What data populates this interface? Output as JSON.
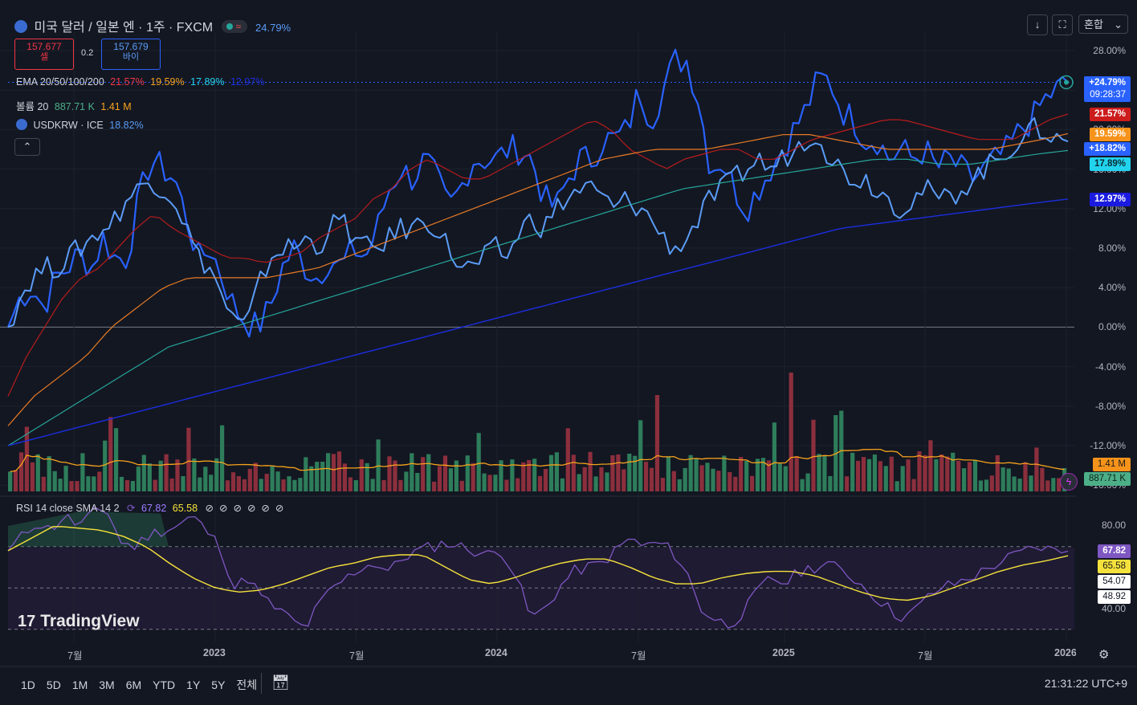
{
  "header": {
    "symbol_title": "미국 달러 / 일본 엔 · 1주 · FXCM",
    "change_pct": "24.79%",
    "sell_price": "157.677",
    "sell_label": "셀",
    "spread": "0.2",
    "buy_price": "157.679",
    "buy_label": "바이",
    "mode_select": "혼합"
  },
  "legends": {
    "ema_label": "EMA 20/50/100/200",
    "ema_values": [
      "21.57%",
      "19.59%",
      "17.89%",
      "12.97%"
    ],
    "volume_label": "볼륨 20",
    "volume_values": [
      "887.71 K",
      "1.41 M"
    ],
    "compare_label": "USDKRW · ICE",
    "compare_value": "18.82%",
    "rsi_label": "RSI 14 close SMA 14 2",
    "rsi_values": [
      "67.82",
      "65.58"
    ]
  },
  "colors": {
    "main": "#2962ff",
    "compare": "#5b9cf6",
    "ema20": "#b71c1c",
    "ema50": "#e97b25",
    "ema100": "#26a69a",
    "ema200": "#1b2ee0",
    "vol_up": "#2e7d5b",
    "vol_down": "#8c2f3d",
    "rsi": "#7e57c2",
    "rsi_ma": "#f5e13b"
  },
  "price_axis": [
    "28.00%",
    "24.00%",
    "20.00%",
    "16.00%",
    "12.00%",
    "8.00%",
    "4.00%",
    "0.00%",
    "-4.00%",
    "-8.00%",
    "-12.00%",
    "-16.00%"
  ],
  "price_tags": {
    "last": "+24.79%",
    "countdown": "09:28:37",
    "ema20": "21.57%",
    "ema50": "19.59%",
    "compare": "+18.82%",
    "ema100": "17.89%",
    "ema200": "12.97%",
    "vol_ma": "1.41 M",
    "vol": "887.71 K"
  },
  "rsi_axis": [
    "80.00",
    "40.00"
  ],
  "rsi_tags": [
    "67.82",
    "65.58",
    "54.07",
    "48.92"
  ],
  "x_axis": [
    "7월",
    "2023",
    "7월",
    "2024",
    "7월",
    "2025",
    "7월",
    "2026"
  ],
  "timeframes": [
    "1D",
    "5D",
    "1M",
    "3M",
    "6M",
    "YTD",
    "1Y",
    "5Y",
    "전체"
  ],
  "clock": "21:31:22 UTC+9",
  "watermark": "TradingView",
  "chart_data": {
    "type": "line",
    "title": "미국 달러 / 일본 엔 · 1주 · FXCM",
    "y_unit": "%",
    "ylim": [
      -16,
      28
    ],
    "x_range": [
      "2022-05",
      "2026-01"
    ],
    "series": [
      {
        "name": "미국 달러 / 일본 엔",
        "values": [
          0,
          3,
          4,
          2,
          5,
          6,
          7.5,
          6,
          9,
          7,
          7,
          13,
          17,
          16,
          15,
          11,
          7,
          8,
          5,
          2,
          0.5,
          0,
          2,
          6,
          8,
          6,
          5,
          7,
          6,
          8,
          7,
          10,
          14,
          16,
          15,
          17,
          15,
          12,
          14,
          17,
          17,
          17,
          18,
          18,
          17,
          13,
          12,
          15,
          17,
          17,
          19,
          19,
          20,
          24,
          21,
          24,
          27,
          27,
          23,
          16,
          17,
          14,
          12,
          14,
          16,
          18,
          20,
          22,
          25,
          25,
          22,
          21,
          19,
          19,
          17,
          18,
          17,
          18,
          16,
          17,
          16,
          15,
          16,
          17,
          18,
          20,
          21,
          23,
          24,
          24.8
        ]
      },
      {
        "name": "USDKRW · ICE",
        "values": [
          0,
          3,
          5,
          6,
          6,
          7,
          8,
          9,
          10,
          11,
          13,
          14,
          15,
          14,
          13,
          10,
          7,
          6,
          3,
          0.5,
          0,
          4,
          7,
          8,
          8,
          9,
          8,
          10,
          11,
          9,
          8,
          8,
          9,
          10,
          10,
          11,
          10,
          8,
          6,
          6,
          7,
          8,
          7,
          10,
          11,
          10,
          12,
          13,
          14,
          14,
          13,
          12,
          13,
          12,
          11,
          9,
          8,
          9,
          11,
          13,
          14,
          15,
          16,
          17,
          16,
          17,
          18,
          19,
          20,
          17,
          16,
          15,
          15,
          14,
          13,
          12,
          13,
          14,
          13,
          13,
          14,
          15,
          16,
          17,
          18,
          19,
          20,
          20,
          19,
          18.8
        ]
      },
      {
        "name": "EMA 20",
        "values": [
          -7,
          -3,
          0,
          3,
          5,
          6,
          8,
          10,
          11.5,
          10,
          9,
          8,
          7,
          7,
          6.5,
          7,
          7.5,
          9,
          10,
          11,
          13,
          14,
          16,
          17,
          16,
          15,
          15,
          16,
          17,
          18,
          19,
          20,
          21,
          20,
          18,
          17,
          16,
          17,
          17.5,
          18,
          18,
          17,
          17,
          18,
          19,
          19.5,
          20,
          20.5,
          21,
          21,
          20.5,
          20,
          19.5,
          19,
          19,
          19,
          20,
          21,
          21.57
        ]
      },
      {
        "name": "EMA 50",
        "values": [
          -10,
          -7,
          -5,
          -3,
          0,
          2,
          4,
          5,
          5,
          5,
          5,
          5.5,
          6,
          7,
          8,
          9,
          10,
          11,
          12,
          13,
          14,
          15,
          16,
          17,
          17.5,
          18,
          18,
          18,
          18.5,
          19,
          19.5,
          19.5,
          19,
          18.5,
          18,
          18,
          18,
          18,
          18,
          18.5,
          19,
          19.59
        ]
      },
      {
        "name": "EMA 100",
        "values": [
          -12,
          -10,
          -8,
          -6,
          -4,
          -2,
          -1,
          0,
          1,
          2,
          3,
          4,
          5,
          6,
          7,
          8,
          9,
          10,
          11,
          12,
          13,
          14,
          14.5,
          15,
          15.5,
          16,
          16.5,
          17,
          17,
          16.5,
          16.5,
          17,
          17.5,
          17.89
        ]
      },
      {
        "name": "EMA 200",
        "values": [
          -12,
          -11,
          -10,
          -9,
          -8,
          -7,
          -6,
          -5,
          -4,
          -3,
          -2,
          -1,
          0,
          1,
          2,
          3,
          4,
          5,
          6,
          7,
          8,
          9,
          10,
          10.5,
          11,
          11.5,
          12,
          12.5,
          12.97
        ]
      }
    ]
  },
  "rsi_data": {
    "rsi": [
      68,
      75,
      82,
      78,
      85,
      80,
      86,
      88,
      72,
      70,
      76,
      78,
      80,
      85,
      78,
      70,
      50,
      55,
      45,
      40,
      35,
      30,
      42,
      50,
      55,
      60,
      62,
      58,
      65,
      68,
      70,
      72,
      70,
      68,
      66,
      68,
      55,
      35,
      40,
      50,
      58,
      60,
      62,
      68,
      74,
      70,
      72,
      68,
      58,
      40,
      35,
      32,
      38,
      48,
      55,
      52,
      58,
      60,
      62,
      58,
      54,
      48,
      42,
      36,
      38,
      45,
      50,
      52,
      55,
      58,
      62,
      65,
      68,
      70,
      68,
      67.82
    ],
    "ma": [
      68,
      74,
      80,
      79,
      78,
      75,
      70,
      62,
      55,
      50,
      48,
      49,
      52,
      56,
      60,
      62,
      65,
      66,
      66,
      60,
      54,
      52,
      55,
      59,
      62,
      64,
      64,
      60,
      55,
      52,
      52,
      55,
      57,
      58,
      58,
      56,
      52,
      48,
      45,
      44,
      46,
      50,
      54,
      58,
      61,
      63,
      65.58
    ]
  }
}
